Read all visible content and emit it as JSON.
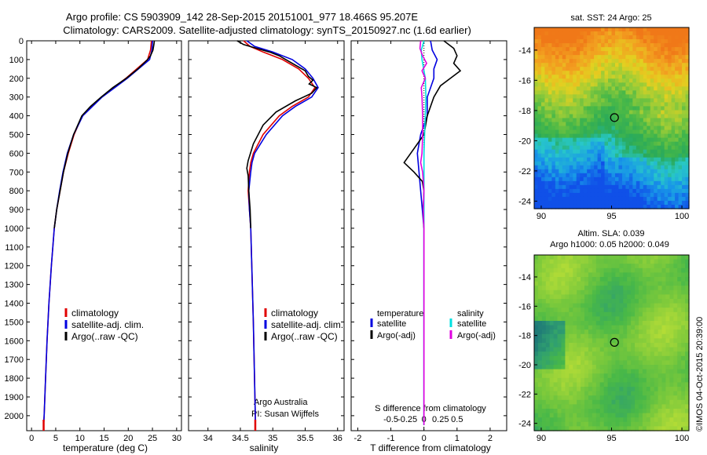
{
  "header": {
    "line1": "Argo profile: CS 5903909_142 28-Sep-2015 20151001_977 18.466S 95.207E",
    "line2": "Climatology: CARS2009. Satellite-adjusted climatology: synTS_20150927.nc (1.6d earlier)"
  },
  "colors": {
    "climatology": "#e00000",
    "satellite": "#0000e0",
    "argo": "#000000",
    "sat_salinity": "#00e0e0",
    "argo_adj_salinity": "#e000e0"
  },
  "chart_data": [
    {
      "type": "line",
      "panel": "temperature",
      "xlabel": "temperature (deg C)",
      "ylabel": "",
      "xlim": [
        -1,
        31
      ],
      "ylim": [
        2080,
        0
      ],
      "xticks": [
        0,
        5,
        10,
        15,
        20,
        25,
        30
      ],
      "yticks": [
        0,
        100,
        200,
        300,
        400,
        500,
        600,
        700,
        800,
        900,
        1000,
        1100,
        1200,
        1300,
        1400,
        1500,
        1600,
        1700,
        1800,
        1900,
        2000
      ],
      "legend": [
        "climatology",
        "satellite-adj. clim.",
        "Argo(..raw -QC)"
      ],
      "series": [
        {
          "name": "climatology",
          "color": "#e00000",
          "depth": [
            0,
            50,
            100,
            200,
            300,
            400,
            500,
            600,
            700,
            800,
            900,
            1000,
            1200,
            1400,
            1600,
            1800,
            2000,
            2050
          ],
          "values": [
            24.8,
            24.6,
            24.0,
            19.5,
            14.5,
            10.5,
            8.8,
            7.6,
            6.6,
            5.9,
            5.2,
            4.7,
            4.1,
            3.6,
            3.2,
            2.9,
            2.6,
            2.5
          ]
        },
        {
          "name": "satellite-adj. clim.",
          "color": "#0000e0",
          "depth": [
            0,
            50,
            100,
            200,
            300,
            400,
            500,
            600,
            700,
            800,
            900,
            1000,
            1200,
            1400,
            1600,
            1800,
            2000,
            2050
          ],
          "values": [
            25.0,
            24.9,
            24.4,
            19.8,
            14.6,
            10.6,
            8.7,
            7.4,
            6.5,
            5.8,
            5.2,
            4.7,
            4.1,
            3.6,
            3.2,
            2.9,
            2.6,
            2.5
          ]
        },
        {
          "name": "Argo(..raw -QC)",
          "color": "#000000",
          "depth": [
            0,
            20,
            50,
            80,
            100,
            150,
            200,
            250,
            300,
            350,
            400,
            500,
            600,
            700,
            800,
            900,
            1000
          ],
          "values": [
            25.4,
            25.3,
            25.1,
            24.6,
            24.0,
            22.0,
            19.6,
            16.8,
            14.4,
            12.2,
            10.4,
            8.7,
            7.5,
            6.6,
            5.9,
            5.2,
            4.7
          ]
        }
      ]
    },
    {
      "type": "line",
      "panel": "salinity",
      "xlabel": "salinity",
      "xlim": [
        33.7,
        36.1
      ],
      "ylim": [
        2080,
        0
      ],
      "xticks": [
        34,
        34.5,
        35,
        35.5,
        36
      ],
      "legend": [
        "climatology",
        "satellite-adj. clim.",
        "Argo(..raw -QC)"
      ],
      "annotation": [
        "Argo Australia",
        "PI: Susan Wijffels"
      ],
      "series": [
        {
          "name": "climatology",
          "color": "#e00000",
          "depth": [
            0,
            30,
            60,
            100,
            150,
            200,
            250,
            300,
            350,
            400,
            500,
            600,
            650,
            700,
            800,
            900,
            1000,
            1500,
            2000,
            2050
          ],
          "values": [
            34.55,
            34.65,
            34.85,
            35.15,
            35.4,
            35.55,
            35.65,
            35.55,
            35.3,
            35.1,
            34.85,
            34.7,
            34.66,
            34.64,
            34.62,
            34.64,
            34.66,
            34.7,
            34.73,
            34.73
          ]
        },
        {
          "name": "satellite-adj. clim.",
          "color": "#0000e0",
          "depth": [
            0,
            30,
            60,
            100,
            150,
            200,
            250,
            300,
            350,
            400,
            500,
            600,
            650,
            700,
            800,
            900,
            1000,
            1500,
            2000,
            2050
          ],
          "values": [
            34.6,
            34.72,
            35.0,
            35.3,
            35.5,
            35.62,
            35.7,
            35.6,
            35.35,
            35.15,
            34.9,
            34.72,
            34.68,
            34.66,
            34.63,
            34.64,
            34.66,
            34.7,
            34.73,
            34.73
          ]
        },
        {
          "name": "Argo(..raw -QC)",
          "color": "#000000",
          "depth": [
            0,
            20,
            40,
            60,
            80,
            100,
            130,
            160,
            190,
            210,
            230,
            250,
            280,
            320,
            380,
            450,
            550,
            640,
            680,
            720,
            800,
            900,
            1000
          ],
          "values": [
            34.45,
            34.55,
            34.75,
            34.95,
            35.1,
            35.2,
            35.35,
            35.5,
            35.55,
            35.62,
            35.56,
            35.68,
            35.6,
            35.35,
            35.05,
            34.85,
            34.7,
            34.62,
            34.6,
            34.62,
            34.63,
            34.65,
            34.66
          ]
        }
      ]
    },
    {
      "type": "line",
      "panel": "difference",
      "xlabel": "T difference from climatology",
      "x2label": "S difference from climatology",
      "xlim": [
        -2.2,
        2.5
      ],
      "ylim": [
        2080,
        0
      ],
      "xticks": [
        -2,
        -1,
        0,
        1,
        2
      ],
      "x2ticks": [
        "-0.5",
        "-0.25",
        "0",
        "0.25",
        "0.5"
      ],
      "legend_temperature": {
        "title": "temperature",
        "items": [
          "satellite",
          "Argo(-adj)"
        ]
      },
      "legend_salinity": {
        "title": "salinity",
        "items": [
          "satellite",
          "Argo(-adj)"
        ]
      },
      "series": [
        {
          "name": "temperature satellite",
          "color": "#0000e0",
          "depth": [
            0,
            50,
            100,
            150,
            200,
            300,
            400,
            500,
            600,
            800,
            1000,
            2050
          ],
          "values": [
            0.2,
            0.25,
            0.4,
            0.3,
            0.3,
            0.1,
            0.1,
            -0.1,
            -0.2,
            -0.1,
            0.0,
            0.0
          ]
        },
        {
          "name": "temperature Argo(-adj)",
          "color": "#000000",
          "depth": [
            0,
            40,
            80,
            120,
            160,
            200,
            240,
            300,
            400,
            500,
            600,
            650,
            700,
            750,
            800,
            900,
            1000
          ],
          "values": [
            0.6,
            0.9,
            1.0,
            0.9,
            1.1,
            0.8,
            0.5,
            0.3,
            0.1,
            0.0,
            -0.4,
            -0.6,
            -0.3,
            -0.05,
            0.0,
            -0.02,
            0.0
          ]
        },
        {
          "name": "salinity satellite",
          "color": "#00e0e0",
          "depth": [
            0,
            50,
            100,
            200,
            300,
            400,
            500,
            600,
            800,
            1000,
            2050
          ],
          "values": [
            0.0,
            -0.04,
            -0.03,
            0.02,
            0.03,
            0.02,
            0.01,
            0.0,
            0.0,
            0.0,
            0.0
          ]
        },
        {
          "name": "salinity Argo(-adj)",
          "color": "#e000e0",
          "depth": [
            0,
            40,
            80,
            120,
            160,
            200,
            250,
            300,
            400,
            500,
            600,
            650,
            700,
            800,
            900,
            1000,
            1100,
            2050
          ],
          "values": [
            -0.05,
            -0.06,
            -0.02,
            0.04,
            -0.03,
            0.02,
            -0.04,
            -0.03,
            -0.02,
            -0.02,
            -0.03,
            -0.05,
            -0.02,
            0.0,
            -0.01,
            0.0,
            0.0,
            0.0
          ]
        }
      ]
    },
    {
      "type": "heatmap",
      "panel": "sst-map",
      "title": "sat. SST: 24 Argo: 25",
      "xlim": [
        89.5,
        100.5
      ],
      "ylim": [
        -24.5,
        -12.5
      ],
      "xticks": [
        90,
        95,
        100
      ],
      "yticks": [
        -14,
        -16,
        -18,
        -20,
        -22,
        -24
      ],
      "profile_location": [
        95.207,
        -18.466
      ],
      "colormap": [
        "#1050e8",
        "#1896e8",
        "#28c8c8",
        "#2aaa5a",
        "#48b848",
        "#98cc38",
        "#e4d020",
        "#f2a020",
        "#f07818"
      ]
    },
    {
      "type": "heatmap",
      "panel": "sla-map",
      "title": "Altim. SLA: 0.039",
      "subtitle": "Argo h1000: 0.05 h2000: 0.049",
      "xlim": [
        89.5,
        100.5
      ],
      "ylim": [
        -24.5,
        -12.5
      ],
      "xticks": [
        90,
        95,
        100
      ],
      "yticks": [
        -14,
        -16,
        -18,
        -20,
        -22,
        -24
      ],
      "profile_location": [
        95.207,
        -18.466
      ],
      "colormap": [
        "#1e7878",
        "#30a070",
        "#48b848",
        "#78c83c",
        "#a8d838",
        "#d4e830"
      ]
    }
  ],
  "footer": {
    "stamp": "©IMOS 04-Oct-2015 20:39:00"
  }
}
